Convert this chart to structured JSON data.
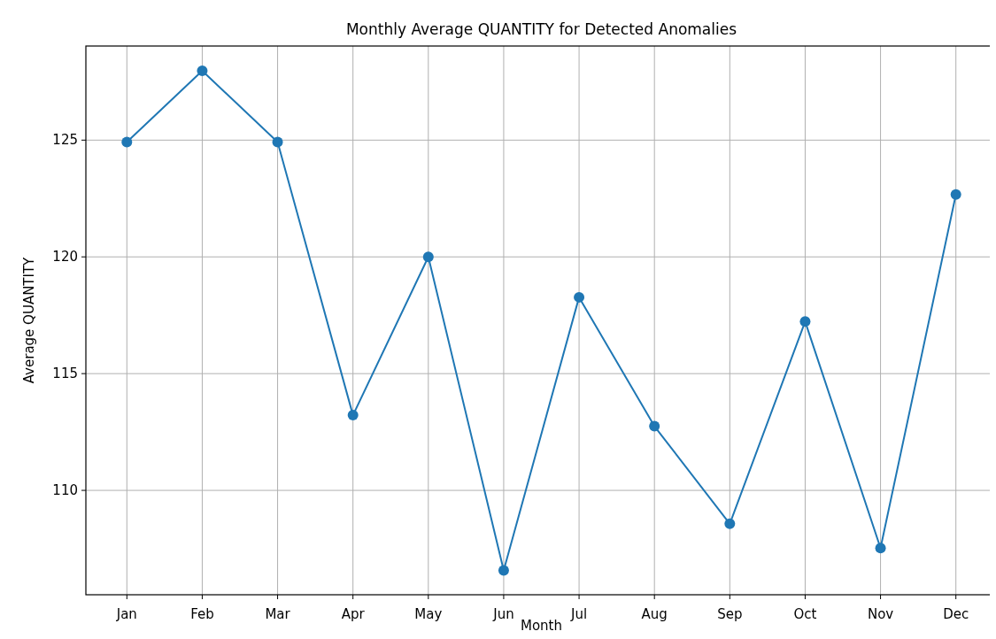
{
  "chart_data": {
    "type": "line",
    "title": "Monthly Average QUANTITY for Detected Anomalies",
    "xlabel": "Month",
    "ylabel": "Average QUANTITY",
    "categories": [
      "Jan",
      "Feb",
      "Mar",
      "Apr",
      "May",
      "Jun",
      "Jul",
      "Aug",
      "Sep",
      "Oct",
      "Nov",
      "Dec"
    ],
    "series": [
      {
        "color": "#1f77b4",
        "values": [
          124.92,
          127.97,
          124.92,
          113.22,
          120.0,
          106.57,
          118.27,
          112.75,
          108.57,
          117.23,
          107.53,
          122.67
        ]
      }
    ],
    "ylim": [
      105.53,
      129.03
    ],
    "yticks": [
      110,
      115,
      120,
      125
    ],
    "grid": true,
    "marker": "circle",
    "line_style": "solid"
  }
}
